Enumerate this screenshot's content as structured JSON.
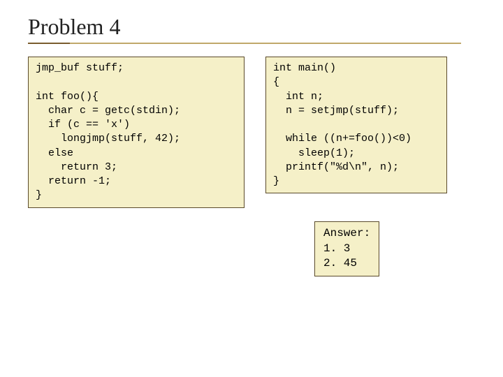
{
  "title": "Problem 4",
  "box_bg": "#f5f0c8",
  "box_border": "#5a4a2a",
  "underline_dark": "#7a5c2e",
  "underline_light": "#c0a86a",
  "code_font": "Courier New",
  "code_fontsize": 15,
  "left_code": "jmp_buf stuff;\n\nint foo(){\n  char c = getc(stdin);\n  if (c == 'x')\n    longjmp(stuff, 42);\n  else\n    return 3;\n  return -1;\n}",
  "right_code": "int main()\n{\n  int n;\n  n = setjmp(stuff);\n\n  while ((n+=foo())<0)\n    sleep(1);\n  printf(\"%d\\n\", n);\n}",
  "answer": "Answer:\n1. 3\n2. 45"
}
